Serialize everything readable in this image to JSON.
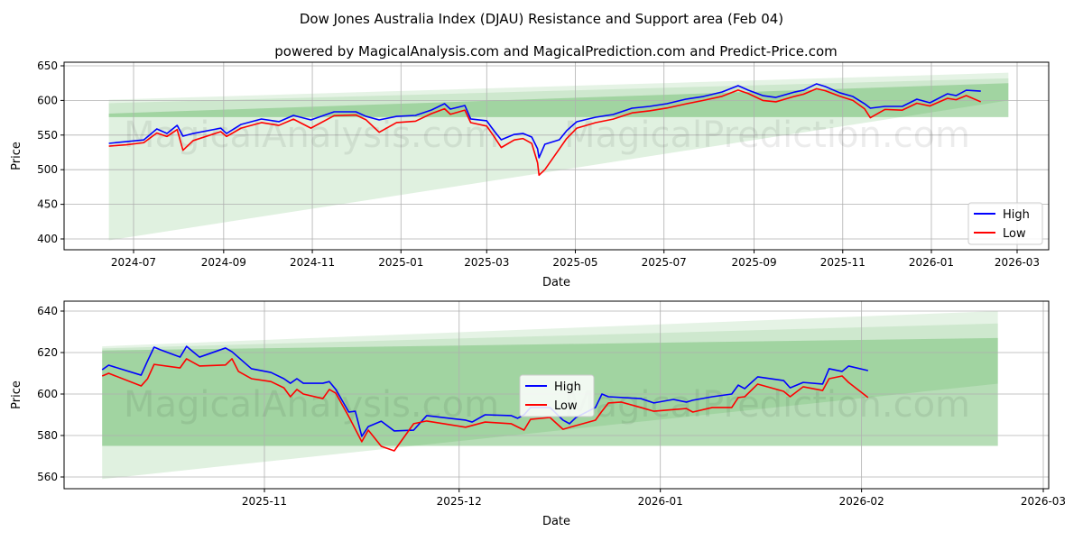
{
  "title": "Dow Jones Australia Index (DJAU) Resistance and Support area (Feb 04)",
  "subtitle": "powered by MagicalAnalysis.com and MagicalPrediction.com and Predict-Price.com",
  "watermarks": [
    "MagicalAnalysis.com",
    "MagicalPrediction.com"
  ],
  "colors": {
    "high": "#0000ff",
    "low": "#ff0000",
    "band": "#2ca02c"
  },
  "chart_data": [
    {
      "type": "line",
      "xlabel": "Date",
      "ylabel": "Price",
      "ylim": [
        385,
        652
      ],
      "xticks": [
        "2024-07",
        "2024-09",
        "2024-11",
        "2025-01",
        "2025-03",
        "2025-05",
        "2025-07",
        "2025-09",
        "2025-11",
        "2026-01",
        "2026-03"
      ],
      "yticks": [
        400,
        450,
        500,
        550,
        600,
        650
      ],
      "grid": true,
      "legend": {
        "position": "lower-right",
        "entries": [
          "High",
          "Low"
        ]
      },
      "bands": [
        {
          "start": "2024-06-14",
          "end": "2026-02-23",
          "top": [
            601,
            640
          ],
          "bottom": [
            576,
            576
          ]
        },
        {
          "start": "2024-06-14",
          "end": "2026-02-23",
          "top": [
            596,
            632
          ],
          "bottom": [
            576,
            576
          ]
        },
        {
          "start": "2024-06-14",
          "end": "2026-02-23",
          "top": [
            581,
            625
          ],
          "bottom": [
            576,
            576
          ]
        },
        {
          "start": "2024-06-14",
          "end": "2026-02-23",
          "top": [
            581,
            625
          ],
          "bottom": [
            398,
            600
          ]
        }
      ],
      "dates": [
        "2024-06-14",
        "2024-06-26",
        "2024-07-08",
        "2024-07-17",
        "2024-07-24",
        "2024-07-31",
        "2024-08-04",
        "2024-08-11",
        "2024-08-30",
        "2024-09-03",
        "2024-09-13",
        "2024-09-27",
        "2024-10-09",
        "2024-10-19",
        "2024-10-31",
        "2024-11-16",
        "2024-12-01",
        "2024-12-08",
        "2024-12-17",
        "2024-12-29",
        "2025-01-11",
        "2025-01-22",
        "2025-01-31",
        "2025-02-04",
        "2025-02-14",
        "2025-02-18",
        "2025-03-01",
        "2025-03-06",
        "2025-03-11",
        "2025-03-20",
        "2025-03-26",
        "2025-04-01",
        "2025-04-05",
        "2025-04-06",
        "2025-04-10",
        "2025-04-20",
        "2025-04-25",
        "2025-05-02",
        "2025-05-15",
        "2025-05-27",
        "2025-06-09",
        "2025-06-21",
        "2025-07-03",
        "2025-07-16",
        "2025-07-28",
        "2025-08-10",
        "2025-08-21",
        "2025-08-28",
        "2025-09-07",
        "2025-09-16",
        "2025-09-29",
        "2025-10-05",
        "2025-10-14",
        "2025-10-20",
        "2025-10-30",
        "2025-11-08",
        "2025-11-16",
        "2025-11-20",
        "2025-11-30",
        "2025-12-12",
        "2025-12-22",
        "2025-12-31",
        "2026-01-12",
        "2026-01-18",
        "2026-01-25",
        "2026-02-04"
      ],
      "series": [
        {
          "name": "High",
          "values": [
            538,
            540.6,
            543,
            558.9,
            552.3,
            564,
            548.4,
            552.3,
            560,
            552.3,
            565.4,
            573.2,
            569.3,
            578.4,
            571.9,
            583.6,
            583.6,
            577,
            571.9,
            577,
            578.4,
            586.2,
            595.3,
            587.5,
            592.7,
            573.2,
            570.6,
            556.3,
            543.2,
            551,
            552.3,
            547.1,
            530.2,
            517.2,
            536.7,
            543.2,
            556.3,
            569.3,
            575.8,
            579.7,
            588.8,
            591.4,
            595.3,
            601.8,
            605.7,
            612.2,
            621.4,
            614.8,
            607,
            604.4,
            612.2,
            614.8,
            624,
            620,
            611,
            605.7,
            595.3,
            588.8,
            591.4,
            591.4,
            601.8,
            596.6,
            609.6,
            607,
            614.8,
            613.5
          ]
        },
        {
          "name": "Low",
          "values": [
            534,
            536,
            539,
            553,
            548,
            558,
            528,
            542,
            555,
            548,
            560,
            568,
            564,
            573,
            560,
            578,
            579,
            572,
            554,
            568,
            570,
            581,
            588,
            580,
            586,
            568,
            563,
            548,
            532,
            543,
            545,
            538,
            510,
            492,
            500,
            530,
            545,
            560,
            568,
            573,
            582,
            585,
            589,
            595,
            600,
            606,
            615,
            610,
            600,
            598,
            606,
            609,
            617,
            614,
            606,
            600,
            588,
            575,
            587,
            586,
            596,
            592,
            603,
            601,
            607,
            598
          ]
        }
      ]
    },
    {
      "type": "line",
      "xlabel": "Date",
      "ylabel": "Price",
      "ylim": [
        554,
        643
      ],
      "xticks": [
        "2025-11",
        "2025-12",
        "2026-01",
        "2026-02",
        "2026-03"
      ],
      "yticks": [
        560,
        580,
        600,
        620,
        640
      ],
      "grid": true,
      "legend": {
        "position": "center",
        "entries": [
          "High",
          "Low"
        ]
      },
      "bands": [
        {
          "start": "2025-10-07",
          "end": "2026-02-22",
          "top": [
            623,
            640
          ],
          "bottom": [
            575,
            575
          ]
        },
        {
          "start": "2025-10-07",
          "end": "2026-02-22",
          "top": [
            622,
            634
          ],
          "bottom": [
            575,
            575
          ]
        },
        {
          "start": "2025-10-07",
          "end": "2026-02-22",
          "top": [
            621,
            627
          ],
          "bottom": [
            575,
            575
          ]
        },
        {
          "start": "2025-10-07",
          "end": "2026-02-22",
          "top": [
            621,
            627
          ],
          "bottom": [
            559,
            605
          ]
        }
      ],
      "series": [
        {
          "name": "High",
          "points": [
            [
              "2025-10-07",
              611.7
            ],
            [
              "2025-10-08",
              613.9
            ],
            [
              "2025-10-13",
              609.1
            ],
            [
              "2025-10-14",
              616
            ],
            [
              "2025-10-15",
              622.6
            ],
            [
              "2025-10-16",
              621.3
            ],
            [
              "2025-10-19",
              617.8
            ],
            [
              "2025-10-20",
              623
            ],
            [
              "2025-10-21",
              620.4
            ],
            [
              "2025-10-22",
              617.8
            ],
            [
              "2025-10-26",
              622.2
            ],
            [
              "2025-10-27",
              620.4
            ],
            [
              "2025-10-30",
              612.2
            ],
            [
              "2025-11-02",
              610.4
            ],
            [
              "2025-11-04",
              607.4
            ],
            [
              "2025-11-05",
              605.2
            ],
            [
              "2025-11-06",
              607.4
            ],
            [
              "2025-11-07",
              605.2
            ],
            [
              "2025-11-10",
              605.2
            ],
            [
              "2025-11-11",
              606
            ],
            [
              "2025-11-12",
              602.2
            ],
            [
              "2025-11-14",
              591.3
            ],
            [
              "2025-11-15",
              591.7
            ],
            [
              "2025-11-16",
              579.6
            ],
            [
              "2025-11-17",
              584.3
            ],
            [
              "2025-11-19",
              586.9
            ],
            [
              "2025-11-21",
              582.2
            ],
            [
              "2025-11-24",
              582.6
            ],
            [
              "2025-11-26",
              589.6
            ],
            [
              "2025-12-02",
              587.4
            ],
            [
              "2025-12-03",
              586.5
            ],
            [
              "2025-12-05",
              590
            ],
            [
              "2025-12-09",
              589.6
            ],
            [
              "2025-12-10",
              588.3
            ],
            [
              "2025-12-11",
              590
            ],
            [
              "2025-12-12",
              593.5
            ],
            [
              "2025-12-15",
              593.5
            ],
            [
              "2025-12-17",
              587.4
            ],
            [
              "2025-12-18",
              585.7
            ],
            [
              "2025-12-19",
              588.7
            ],
            [
              "2025-12-22",
              593.5
            ],
            [
              "2025-12-23",
              600
            ],
            [
              "2025-12-24",
              598.7
            ],
            [
              "2025-12-29",
              597.8
            ],
            [
              "2025-12-31",
              595.7
            ],
            [
              "2026-01-03",
              597.4
            ],
            [
              "2026-01-05",
              596.1
            ],
            [
              "2026-01-06",
              597
            ],
            [
              "2026-01-09",
              598.7
            ],
            [
              "2026-01-12",
              600
            ],
            [
              "2026-01-13",
              604.3
            ],
            [
              "2026-01-14",
              602.6
            ],
            [
              "2026-01-16",
              608.3
            ],
            [
              "2026-01-20",
              606.5
            ],
            [
              "2026-01-21",
              603
            ],
            [
              "2026-01-23",
              605.6
            ],
            [
              "2026-01-26",
              604.8
            ],
            [
              "2026-01-27",
              612.2
            ],
            [
              "2026-01-29",
              610.9
            ],
            [
              "2026-01-30",
              613.5
            ],
            [
              "2026-02-02",
              611.3
            ]
          ]
        },
        {
          "name": "Low",
          "points": [
            [
              "2025-10-07",
              608.7
            ],
            [
              "2025-10-08",
              610
            ],
            [
              "2025-10-13",
              603.9
            ],
            [
              "2025-10-14",
              607.4
            ],
            [
              "2025-10-15",
              614.3
            ],
            [
              "2025-10-19",
              612.6
            ],
            [
              "2025-10-20",
              617
            ],
            [
              "2025-10-22",
              613.5
            ],
            [
              "2025-10-26",
              614
            ],
            [
              "2025-10-27",
              617
            ],
            [
              "2025-10-28",
              610.9
            ],
            [
              "2025-10-30",
              607.4
            ],
            [
              "2025-11-02",
              606
            ],
            [
              "2025-11-04",
              603
            ],
            [
              "2025-11-05",
              598.7
            ],
            [
              "2025-11-06",
              602.2
            ],
            [
              "2025-11-07",
              600
            ],
            [
              "2025-11-10",
              597.8
            ],
            [
              "2025-11-11",
              602.2
            ],
            [
              "2025-11-12",
              600.4
            ],
            [
              "2025-11-14",
              589.1
            ],
            [
              "2025-11-16",
              577
            ],
            [
              "2025-11-17",
              582.6
            ],
            [
              "2025-11-19",
              574.8
            ],
            [
              "2025-11-21",
              572.6
            ],
            [
              "2025-11-24",
              585.7
            ],
            [
              "2025-11-26",
              587
            ],
            [
              "2025-12-02",
              584
            ],
            [
              "2025-12-05",
              586.5
            ],
            [
              "2025-12-09",
              585.7
            ],
            [
              "2025-12-11",
              582.6
            ],
            [
              "2025-12-12",
              587.8
            ],
            [
              "2025-12-15",
              588.7
            ],
            [
              "2025-12-17",
              583
            ],
            [
              "2025-12-19",
              584.8
            ],
            [
              "2025-12-22",
              587.4
            ],
            [
              "2025-12-23",
              591.7
            ],
            [
              "2025-12-24",
              595.7
            ],
            [
              "2025-12-26",
              596.1
            ],
            [
              "2025-12-29",
              593.5
            ],
            [
              "2025-12-31",
              591.7
            ],
            [
              "2026-01-05",
              593
            ],
            [
              "2026-01-06",
              591.3
            ],
            [
              "2026-01-09",
              593.5
            ],
            [
              "2026-01-12",
              593.5
            ],
            [
              "2026-01-13",
              598.3
            ],
            [
              "2026-01-14",
              598.7
            ],
            [
              "2026-01-16",
              604.8
            ],
            [
              "2026-01-20",
              601.3
            ],
            [
              "2026-01-21",
              598.7
            ],
            [
              "2026-01-23",
              603.5
            ],
            [
              "2026-01-26",
              601.7
            ],
            [
              "2026-01-27",
              607.4
            ],
            [
              "2026-01-29",
              608.7
            ],
            [
              "2026-01-30",
              605.6
            ],
            [
              "2026-02-02",
              598.3
            ]
          ]
        }
      ]
    }
  ]
}
